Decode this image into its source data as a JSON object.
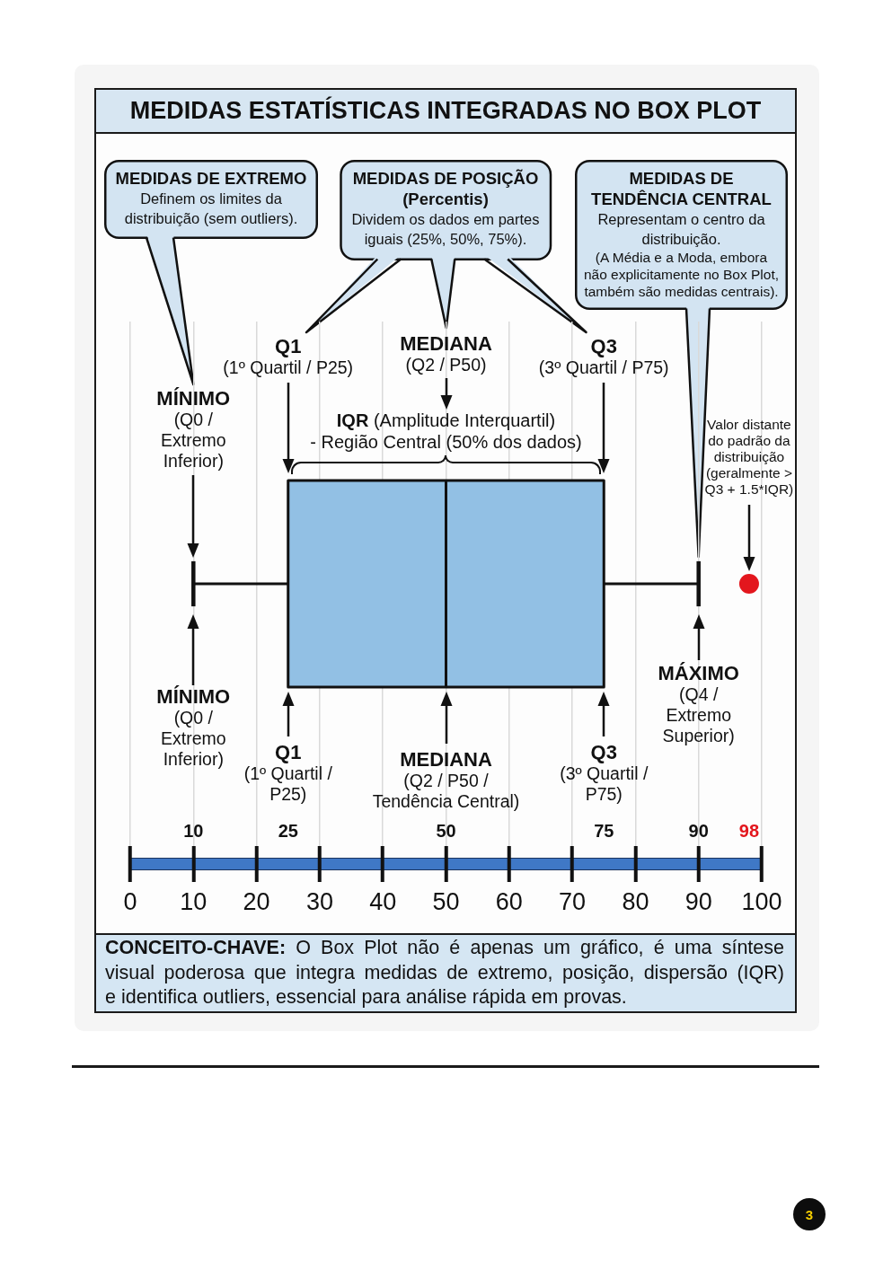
{
  "chart_data": {
    "type": "box",
    "orientation": "horizontal",
    "title": "MEDIDAS ESTATÍSTICAS INTEGRADAS NO BOX PLOT",
    "categories": [
      null
    ],
    "series": [
      {
        "color": "#92c0e4",
        "boxes": [
          {
            "low": 10,
            "q1": 25,
            "median": 50,
            "q3": 75,
            "high": 90,
            "outliers": [
              98
            ]
          }
        ]
      }
    ],
    "xlim": [
      0,
      100
    ],
    "xticks": [
      0,
      10,
      20,
      30,
      40,
      50,
      60,
      70,
      80,
      90,
      100
    ],
    "grid": "x",
    "annotations": [
      "MEDIDAS DE EXTREMO",
      "Definem os limites da distribuição (sem outliers).",
      "MEDIDAS DE POSIÇÃO (Percentis)",
      "Dividem os dados em partes iguais (25%, 50%, 75%).",
      "MEDIDAS DE TENDÊNCIA CENTRAL",
      "Representam o centro da distribuição.",
      "(A Média e a Moda, embora não explicitamente no Box Plot, também são medidas centrais).",
      "Q1",
      "(1º Quartil / P25)",
      "MEDIANA",
      "(Q2 / P50)",
      "Q3",
      "(3º Quartil / P75)",
      "MÍNIMO",
      "(Q0 / Extremo Inferior)",
      "IQR",
      "(Amplitude Interquartil)",
      "- Região Central (50% dos dados)",
      "Valor distante do padrão da distribuição (geralmente > Q3 + 1.5*IQR)",
      "MÁXIMO",
      "(Q4 / Extremo Superior)",
      "MÍNIMO",
      "(Q0 / Extremo Inferior)",
      "Q1",
      "(1º Quartil / P25)",
      "MEDIANA",
      "(Q2 / P50 / Tendência Central)",
      "Q3",
      "(3º Quartil / P75)",
      "10",
      "25",
      "50",
      "75",
      "90",
      "98",
      "CONCEITO-CHAVE:",
      "O Box Plot não é apenas um gráfico, é uma síntese",
      "visual poderosa que integra medidas de extremo, posição, dispersão (IQR)",
      "e identifica outliers, essencial para análise rápida em provas.",
      "3"
    ]
  }
}
